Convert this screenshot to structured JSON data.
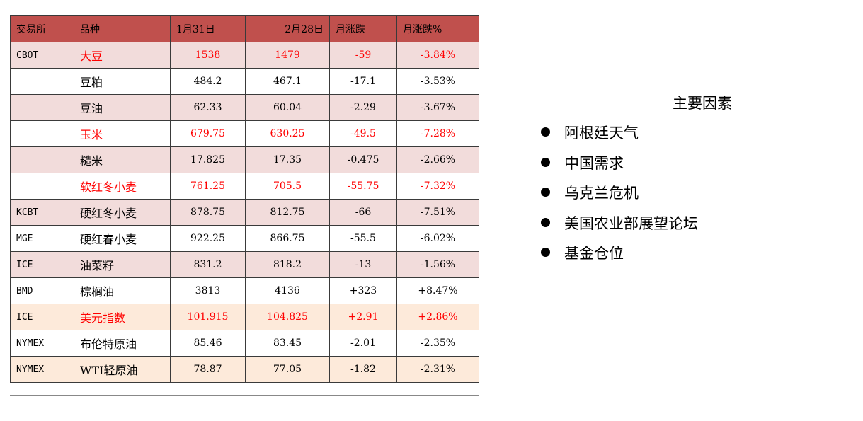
{
  "table": {
    "headers": [
      "交易所",
      "品种",
      "1月31日",
      "2月28日",
      "月涨跌",
      "月涨跌%"
    ],
    "rows": [
      {
        "exchange": "CBOT",
        "name": "大豆",
        "jan31": "1538",
        "feb28": "1479",
        "change": "-59",
        "pct": "-3.84%",
        "highlight": true,
        "bg": "shade"
      },
      {
        "exchange": "",
        "name": "豆粕",
        "jan31": "484.2",
        "feb28": "467.1",
        "change": "-17.1",
        "pct": "-3.53%",
        "highlight": false,
        "bg": "plain"
      },
      {
        "exchange": "",
        "name": "豆油",
        "jan31": "62.33",
        "feb28": "60.04",
        "change": "-2.29",
        "pct": "-3.67%",
        "highlight": false,
        "bg": "shade"
      },
      {
        "exchange": "",
        "name": "玉米",
        "jan31": "679.75",
        "feb28": "630.25",
        "change": "-49.5",
        "pct": "-7.28%",
        "highlight": true,
        "bg": "plain"
      },
      {
        "exchange": "",
        "name": "糙米",
        "jan31": "17.825",
        "feb28": "17.35",
        "change": "-0.475",
        "pct": "-2.66%",
        "highlight": false,
        "bg": "shade"
      },
      {
        "exchange": "",
        "name": "软红冬小麦",
        "jan31": "761.25",
        "feb28": "705.5",
        "change": "-55.75",
        "pct": "-7.32%",
        "highlight": true,
        "bg": "plain"
      },
      {
        "exchange": "KCBT",
        "name": "硬红冬小麦",
        "jan31": "878.75",
        "feb28": "812.75",
        "change": "-66",
        "pct": "-7.51%",
        "highlight": false,
        "bg": "shade"
      },
      {
        "exchange": "MGE",
        "name": "硬红春小麦",
        "jan31": "922.25",
        "feb28": "866.75",
        "change": "-55.5",
        "pct": "-6.02%",
        "highlight": false,
        "bg": "plain"
      },
      {
        "exchange": "ICE",
        "name": "油菜籽",
        "jan31": "831.2",
        "feb28": "818.2",
        "change": "-13",
        "pct": "-1.56%",
        "highlight": false,
        "bg": "shade"
      },
      {
        "exchange": "BMD",
        "name": "棕榈油",
        "jan31": "3813",
        "feb28": "4136",
        "change": "+323",
        "pct": "+8.47%",
        "highlight": false,
        "bg": "plain"
      },
      {
        "exchange": "ICE",
        "name": "美元指数",
        "jan31": "101.915",
        "feb28": "104.825",
        "change": "+2.91",
        "pct": "+2.86%",
        "highlight": true,
        "bg": "peach"
      },
      {
        "exchange": "NYMEX",
        "name": "布伦特原油",
        "jan31": "85.46",
        "feb28": "83.45",
        "change": "-2.01",
        "pct": "-2.35%",
        "highlight": false,
        "bg": "plain"
      },
      {
        "exchange": "NYMEX",
        "name": "WTI轻原油",
        "jan31": "78.87",
        "feb28": "77.05",
        "change": "-1.82",
        "pct": "-2.31%",
        "highlight": false,
        "bg": "peach"
      }
    ]
  },
  "factors": {
    "title": "主要因素",
    "items": [
      "阿根廷天气",
      "中国需求",
      "乌克兰危机",
      "美国农业部展望论坛",
      "基金仓位"
    ]
  },
  "colors": {
    "header_bg": "#c0504d",
    "shade_row": "#f2dcdb",
    "peach_row": "#fdeada",
    "highlight_text": "#ff0000"
  }
}
